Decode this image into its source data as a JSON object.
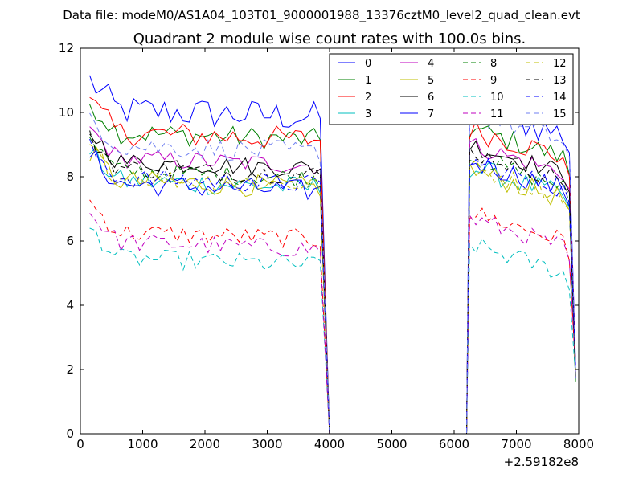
{
  "chart_data": {
    "type": "line",
    "suptitle": "Data file: modeM0/AS1A04_103T01_9000001988_13376cztM0_level2_quad_clean.evt",
    "title": "Quadrant 2 module wise count rates with 100.0s bins.",
    "xlabel": "",
    "ylabel": "",
    "x_offset_label": "+2.59182e8",
    "xlim": [
      0,
      8000
    ],
    "ylim": [
      0,
      12
    ],
    "x_ticks": [
      0,
      1000,
      2000,
      3000,
      4000,
      5000,
      6000,
      7000,
      8000
    ],
    "y_ticks": [
      0,
      2,
      4,
      6,
      8,
      10,
      12
    ],
    "legend": {
      "placement": "top-right",
      "columns": 4
    },
    "segments": [
      {
        "start": 150,
        "end": 3850,
        "step": 100
      },
      {
        "start": 6250,
        "end": 7950,
        "step": 100
      }
    ],
    "gap": {
      "drop_start": 3850,
      "zero_start": 4000,
      "zero_end": 6200,
      "rise_end": 6250
    },
    "series": [
      {
        "name": "0",
        "color": "#0000ff",
        "dash": false,
        "level1": 10.1,
        "level2": 9.6,
        "noise": 0.5
      },
      {
        "name": "1",
        "color": "#008000",
        "dash": false,
        "level1": 9.4,
        "level2": 8.9,
        "noise": 0.35
      },
      {
        "name": "2",
        "color": "#ff0000",
        "dash": false,
        "level1": 9.4,
        "level2": 8.9,
        "noise": 0.4
      },
      {
        "name": "3",
        "color": "#00bfbf",
        "dash": false,
        "level1": 7.9,
        "level2": 7.7,
        "noise": 0.35
      },
      {
        "name": "4",
        "color": "#bf00bf",
        "dash": false,
        "level1": 8.6,
        "level2": 8.4,
        "noise": 0.3
      },
      {
        "name": "5",
        "color": "#bfbf00",
        "dash": false,
        "level1": 7.9,
        "level2": 7.6,
        "noise": 0.35
      },
      {
        "name": "6",
        "color": "#000000",
        "dash": false,
        "level1": 8.5,
        "level2": 8.4,
        "noise": 0.3
      },
      {
        "name": "7",
        "color": "#0000ff",
        "dash": false,
        "level1": 7.8,
        "level2": 7.9,
        "noise": 0.35
      },
      {
        "name": "8",
        "color": "#008000",
        "dash": true,
        "level1": 8.2,
        "level2": 8.0,
        "noise": 0.3
      },
      {
        "name": "9",
        "color": "#ff0000",
        "dash": true,
        "level1": 6.3,
        "level2": 6.3,
        "noise": 0.3
      },
      {
        "name": "10",
        "color": "#00bfbf",
        "dash": true,
        "level1": 5.5,
        "level2": 5.3,
        "noise": 0.3
      },
      {
        "name": "11",
        "color": "#bf00bf",
        "dash": true,
        "level1": 6.0,
        "level2": 6.1,
        "noise": 0.3
      },
      {
        "name": "12",
        "color": "#bfbf00",
        "dash": true,
        "level1": 8.0,
        "level2": 7.7,
        "noise": 0.3
      },
      {
        "name": "13",
        "color": "#000000",
        "dash": true,
        "level1": 8.3,
        "level2": 8.2,
        "noise": 0.3
      },
      {
        "name": "14",
        "color": "#0000ff",
        "dash": true,
        "level1": 8.0,
        "level2": 7.9,
        "noise": 0.3
      },
      {
        "name": "15",
        "color": "#6f7ff0",
        "dash": true,
        "level1": 9.0,
        "level2": 9.4,
        "noise": 0.35
      }
    ]
  }
}
